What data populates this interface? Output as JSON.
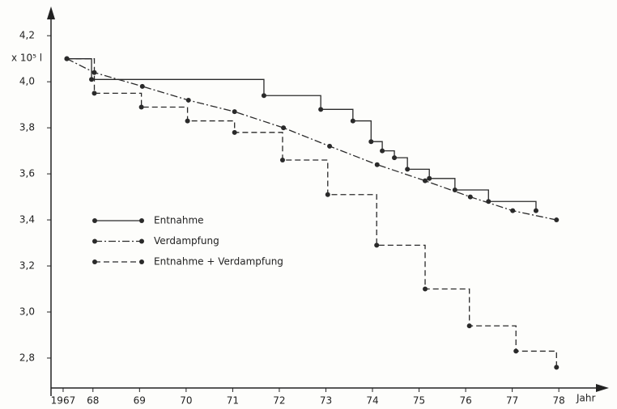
{
  "chart_data": {
    "type": "line",
    "ylabel": "x 10⁵ l",
    "xlabel": "Jahr",
    "xlim": [
      1967.1,
      1979.04
    ],
    "ylim": [
      2.67,
      4.32
    ],
    "xticks": [
      {
        "value": 1967.36,
        "label": "1967"
      },
      {
        "value": 1968,
        "label": "68"
      },
      {
        "value": 1969,
        "label": "69"
      },
      {
        "value": 1970,
        "label": "70"
      },
      {
        "value": 1971,
        "label": "71"
      },
      {
        "value": 1972,
        "label": "72"
      },
      {
        "value": 1973,
        "label": "73"
      },
      {
        "value": 1974,
        "label": "74"
      },
      {
        "value": 1975,
        "label": "75"
      },
      {
        "value": 1976,
        "label": "76"
      },
      {
        "value": 1977,
        "label": "77"
      },
      {
        "value": 1978,
        "label": "78"
      }
    ],
    "yticks": [
      {
        "value": 2.8,
        "label": "2,8"
      },
      {
        "value": 3.0,
        "label": "3,0"
      },
      {
        "value": 3.2,
        "label": "3,2"
      },
      {
        "value": 3.4,
        "label": "3,4"
      },
      {
        "value": 3.6,
        "label": "3,6"
      },
      {
        "value": 3.8,
        "label": "3,8"
      },
      {
        "value": 4.0,
        "label": "4,0"
      },
      {
        "value": 4.2,
        "label": "4,2"
      }
    ],
    "grid": false,
    "legend": "lower-left",
    "series": [
      {
        "name": "Entnahme",
        "color": "#2a2a2a",
        "dash": "solid",
        "step": true,
        "x": [
          1967.44,
          1967.97,
          1971.67,
          1972.89,
          1973.58,
          1973.97,
          1974.21,
          1974.47,
          1974.75,
          1975.22,
          1975.77,
          1976.49,
          1977.51
        ],
        "values": [
          4.1,
          4.01,
          3.94,
          3.88,
          3.83,
          3.74,
          3.7,
          3.67,
          3.62,
          3.58,
          3.53,
          3.48,
          3.44
        ]
      },
      {
        "name": "Verdampfung",
        "color": "#2a2a2a",
        "dash": "dashdot",
        "step": false,
        "x": [
          1967.44,
          1968.03,
          1969.06,
          1970.05,
          1971.04,
          1972.09,
          1973.08,
          1974.1,
          1975.13,
          1976.1,
          1977.01,
          1977.95
        ],
        "values": [
          4.1,
          4.04,
          3.98,
          3.92,
          3.87,
          3.8,
          3.72,
          3.64,
          3.57,
          3.5,
          3.44,
          3.4
        ]
      },
      {
        "name": "Entnahme + Verdampfung",
        "color": "#2a2a2a",
        "dash": "dashed",
        "step": true,
        "x": [
          1967.44,
          1968.03,
          1969.04,
          1970.03,
          1971.04,
          1972.07,
          1973.04,
          1974.09,
          1975.13,
          1976.08,
          1977.08,
          1977.95
        ],
        "values": [
          4.1,
          3.95,
          3.89,
          3.83,
          3.78,
          3.66,
          3.51,
          3.29,
          3.1,
          2.94,
          2.83,
          2.76
        ]
      }
    ]
  }
}
